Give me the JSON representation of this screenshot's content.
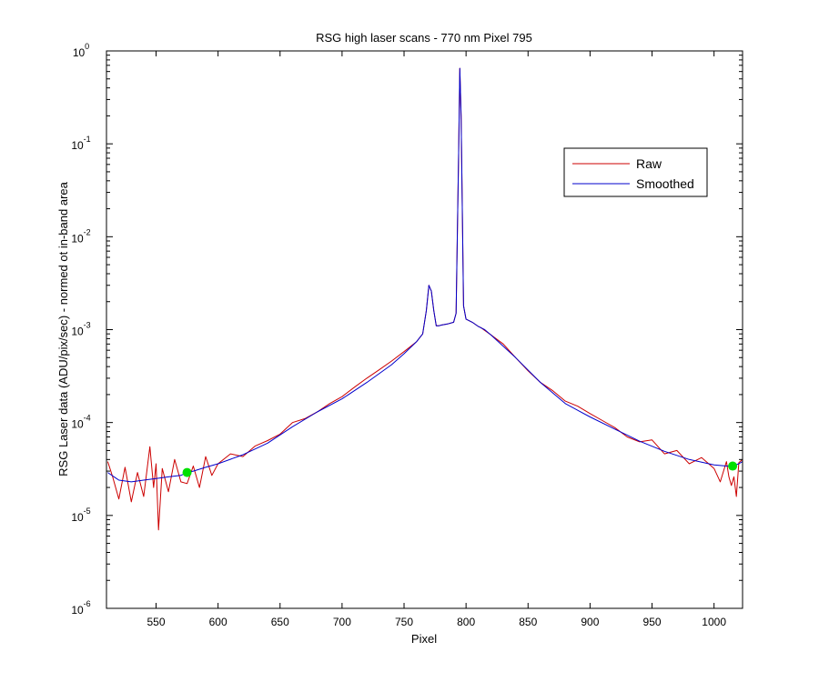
{
  "chart_data": {
    "type": "line",
    "title": "RSG high laser scans  - 770 nm    Pixel 795",
    "xlabel": "Pixel",
    "ylabel": "RSG Laser data (ADU/pix/sec) - normed ot in-band area",
    "xscale": "linear",
    "yscale": "log",
    "xlim": [
      510,
      1023
    ],
    "ylim": [
      1e-06,
      1
    ],
    "xticks": [
      550,
      600,
      650,
      700,
      750,
      800,
      850,
      900,
      950,
      1000
    ],
    "xtick_labels": [
      "550",
      "600",
      "650",
      "700",
      "750",
      "800",
      "850",
      "900",
      "950",
      "1000"
    ],
    "ytick_labels": [
      {
        "base": "10",
        "exp": "0",
        "value": 1
      },
      {
        "base": "10",
        "exp": "-1",
        "value": 0.1
      },
      {
        "base": "10",
        "exp": "-2",
        "value": 0.01
      },
      {
        "base": "10",
        "exp": "-3",
        "value": 0.001
      },
      {
        "base": "10",
        "exp": "-4",
        "value": 0.0001
      },
      {
        "base": "10",
        "exp": "-5",
        "value": 1e-05
      },
      {
        "base": "10",
        "exp": "-6",
        "value": 1e-06
      }
    ],
    "grid": false,
    "legend_position": "top-right",
    "series": [
      {
        "name": "Raw",
        "color": "#cc0000",
        "x": [
          511,
          515,
          520,
          525,
          530,
          535,
          540,
          545,
          548,
          550,
          552,
          555,
          560,
          565,
          570,
          575,
          580,
          585,
          590,
          595,
          600,
          610,
          620,
          630,
          640,
          650,
          660,
          670,
          680,
          690,
          700,
          710,
          720,
          730,
          740,
          750,
          760,
          765,
          768,
          770,
          772,
          774,
          776,
          778,
          780,
          785,
          790,
          792,
          794,
          795,
          796,
          798,
          800,
          805,
          810,
          812,
          815,
          820,
          830,
          840,
          850,
          860,
          870,
          880,
          890,
          900,
          910,
          920,
          930,
          940,
          950,
          960,
          970,
          980,
          990,
          1000,
          1005,
          1010,
          1012,
          1014,
          1016,
          1018,
          1020,
          1023
        ],
        "y": [
          3.8e-05,
          2.6e-05,
          1.5e-05,
          3.3e-05,
          1.4e-05,
          2.9e-05,
          1.6e-05,
          5.5e-05,
          2e-05,
          3.6e-05,
          7e-06,
          3.2e-05,
          1.8e-05,
          4e-05,
          2.3e-05,
          2.2e-05,
          3.4e-05,
          2e-05,
          4.3e-05,
          2.7e-05,
          3.6e-05,
          4.6e-05,
          4.3e-05,
          5.6e-05,
          6.4e-05,
          7.5e-05,
          0.0001,
          0.00011,
          0.00013,
          0.00016,
          0.00019,
          0.00024,
          0.0003,
          0.00037,
          0.00046,
          0.00058,
          0.00074,
          0.0009,
          0.0016,
          0.003,
          0.0026,
          0.0016,
          0.0011,
          0.0011,
          0.00112,
          0.00115,
          0.0012,
          0.0015,
          0.08,
          0.65,
          0.2,
          0.0018,
          0.0013,
          0.0012,
          0.00108,
          0.00105,
          0.00098,
          0.00088,
          0.0007,
          0.0005,
          0.00036,
          0.00027,
          0.00022,
          0.00017,
          0.00015,
          0.000125,
          0.000105,
          8.8e-05,
          7e-05,
          6.2e-05,
          6.5e-05,
          4.6e-05,
          5e-05,
          3.6e-05,
          4.2e-05,
          3.2e-05,
          2.3e-05,
          3.8e-05,
          2.6e-05,
          2.1e-05,
          2.6e-05,
          1.6e-05,
          3.7e-05,
          4e-05
        ]
      },
      {
        "name": "Smoothed",
        "color": "#0000cc",
        "x": [
          511,
          520,
          530,
          540,
          550,
          560,
          570,
          575,
          580,
          590,
          600,
          620,
          640,
          660,
          680,
          700,
          720,
          740,
          750,
          760,
          765,
          768,
          770,
          772,
          774,
          776,
          778,
          780,
          785,
          790,
          792,
          794,
          795,
          796,
          798,
          800,
          805,
          810,
          815,
          820,
          840,
          860,
          880,
          900,
          920,
          940,
          960,
          980,
          1000,
          1010,
          1015,
          1020,
          1023
        ],
        "y": [
          2.9e-05,
          2.4e-05,
          2.3e-05,
          2.4e-05,
          2.5e-05,
          2.6e-05,
          2.7e-05,
          2.9e-05,
          3e-05,
          3.3e-05,
          3.6e-05,
          4.5e-05,
          6e-05,
          9e-05,
          0.00013,
          0.00018,
          0.00027,
          0.00042,
          0.00055,
          0.00074,
          0.0009,
          0.0016,
          0.003,
          0.0026,
          0.0016,
          0.0011,
          0.0011,
          0.00112,
          0.00115,
          0.0012,
          0.0015,
          0.08,
          0.65,
          0.2,
          0.0018,
          0.0013,
          0.0012,
          0.00108,
          0.001,
          0.00088,
          0.0005,
          0.00027,
          0.00016,
          0.000115,
          8.5e-05,
          6.3e-05,
          4.9e-05,
          4e-05,
          3.5e-05,
          3.4e-05,
          3.4e-05,
          3.6e-05,
          3.8e-05
        ]
      }
    ],
    "markers": {
      "color": "#00e000",
      "points": [
        {
          "x": 575,
          "y": 2.9e-05
        },
        {
          "x": 1015,
          "y": 3.4e-05
        }
      ]
    }
  }
}
